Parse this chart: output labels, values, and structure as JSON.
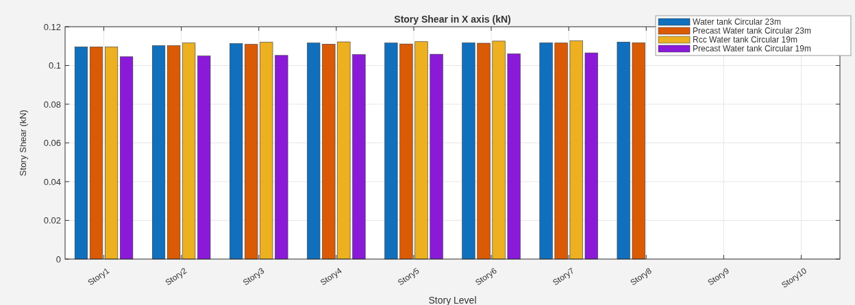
{
  "chart_data": {
    "type": "bar",
    "title": "Story Shear in X axis (kN)",
    "xlabel": "Story Level",
    "ylabel": "Story Shear (kN)",
    "categories": [
      "Story1",
      "Story2",
      "Story3",
      "Story4",
      "Story5",
      "Story6",
      "Story7",
      "Story8",
      "Story9",
      "Story10"
    ],
    "series": [
      {
        "name": "Water tank Circular 23m",
        "color": "#1170bd",
        "values": [
          0.1096,
          0.1102,
          0.1113,
          0.1116,
          0.1116,
          0.1117,
          0.1117,
          0.1121,
          null,
          null
        ]
      },
      {
        "name": "Precast Water tank Circular 23m",
        "color": "#da5a06",
        "values": [
          0.1096,
          0.1102,
          0.1109,
          0.111,
          0.1111,
          0.1115,
          0.1116,
          0.1117,
          null,
          null
        ]
      },
      {
        "name": "Rcc Water tank Circular 19m",
        "color": "#ecb020",
        "values": [
          0.1096,
          0.1116,
          0.112,
          0.1122,
          0.1123,
          0.1126,
          0.1127,
          null,
          null,
          null
        ]
      },
      {
        "name": "Precast Water tank Circular 19m",
        "color": "#8a1ad8",
        "values": [
          0.1045,
          0.1049,
          0.1052,
          0.1056,
          0.1058,
          0.106,
          0.1065,
          null,
          null,
          null
        ]
      }
    ],
    "ylim": [
      0,
      0.12
    ],
    "yticks": [
      0,
      0.02,
      0.04,
      0.06,
      0.08,
      0.1,
      0.12
    ],
    "grid": true,
    "legend": "top right"
  }
}
